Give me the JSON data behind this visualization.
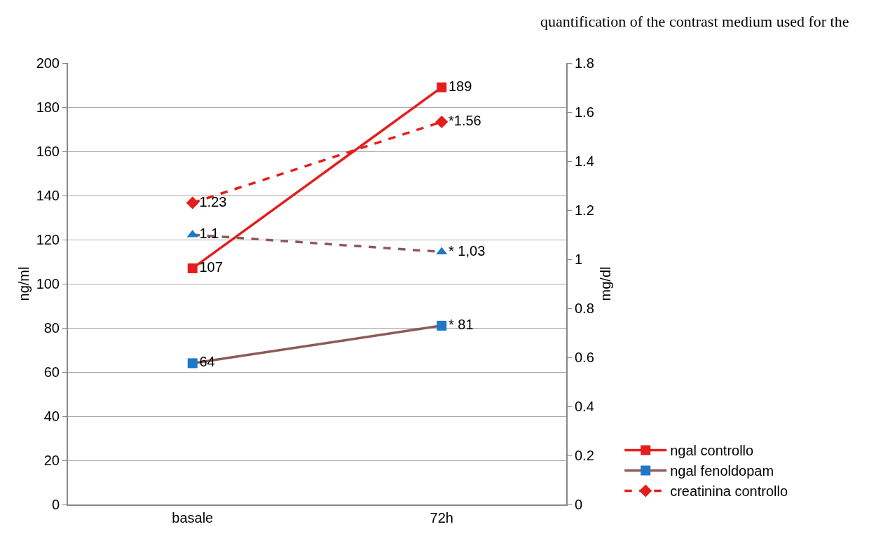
{
  "chart_data": {
    "type": "line",
    "annotations": [
      "quantification of the contrast medium used for the"
    ],
    "categories": [
      "basale",
      "72h"
    ],
    "ylabel": "ng/ml",
    "y2label": "mg/dl",
    "ylim": [
      0,
      200
    ],
    "yticks": [
      0,
      20,
      40,
      60,
      80,
      100,
      120,
      140,
      160,
      180,
      200
    ],
    "y2lim": [
      0,
      1.8
    ],
    "y2ticks": [
      0,
      0.2,
      0.4,
      0.6,
      0.8,
      1,
      1.2,
      1.4,
      1.6,
      1.8
    ],
    "grid": "y",
    "legend": "bottom right",
    "series": [
      {
        "name": "ngal controllo",
        "color": "#e41e1e",
        "values": [
          107,
          189
        ],
        "marker": "square",
        "line_style": "solid",
        "value_labels": [
          "107",
          "189"
        ]
      },
      {
        "name": "ngal fenoldopam",
        "color": "#8c5a5a",
        "colors": [
          "#1f77c8",
          "#1f77c8"
        ],
        "values": [
          64,
          81
        ],
        "marker": "square",
        "line_style": "solid",
        "value_labels": [
          "64",
          "* 81"
        ]
      },
      {
        "name": "creatinina controllo",
        "color": "#e41e1e",
        "values": [
          1.23,
          1.56
        ],
        "axis": "y2",
        "marker": "diamond",
        "line_style": "dashed",
        "value_labels": [
          "1.23",
          "*1.56"
        ]
      },
      {
        "color": "#8c5a5a",
        "colors": [
          "#1f77c8",
          "#1f77c8"
        ],
        "values": [
          1.1,
          1.03
        ],
        "axis": "y2",
        "marker": "triangle",
        "line_style": "dashed",
        "value_labels": [
          "1.1",
          "* 1,03"
        ]
      }
    ]
  }
}
